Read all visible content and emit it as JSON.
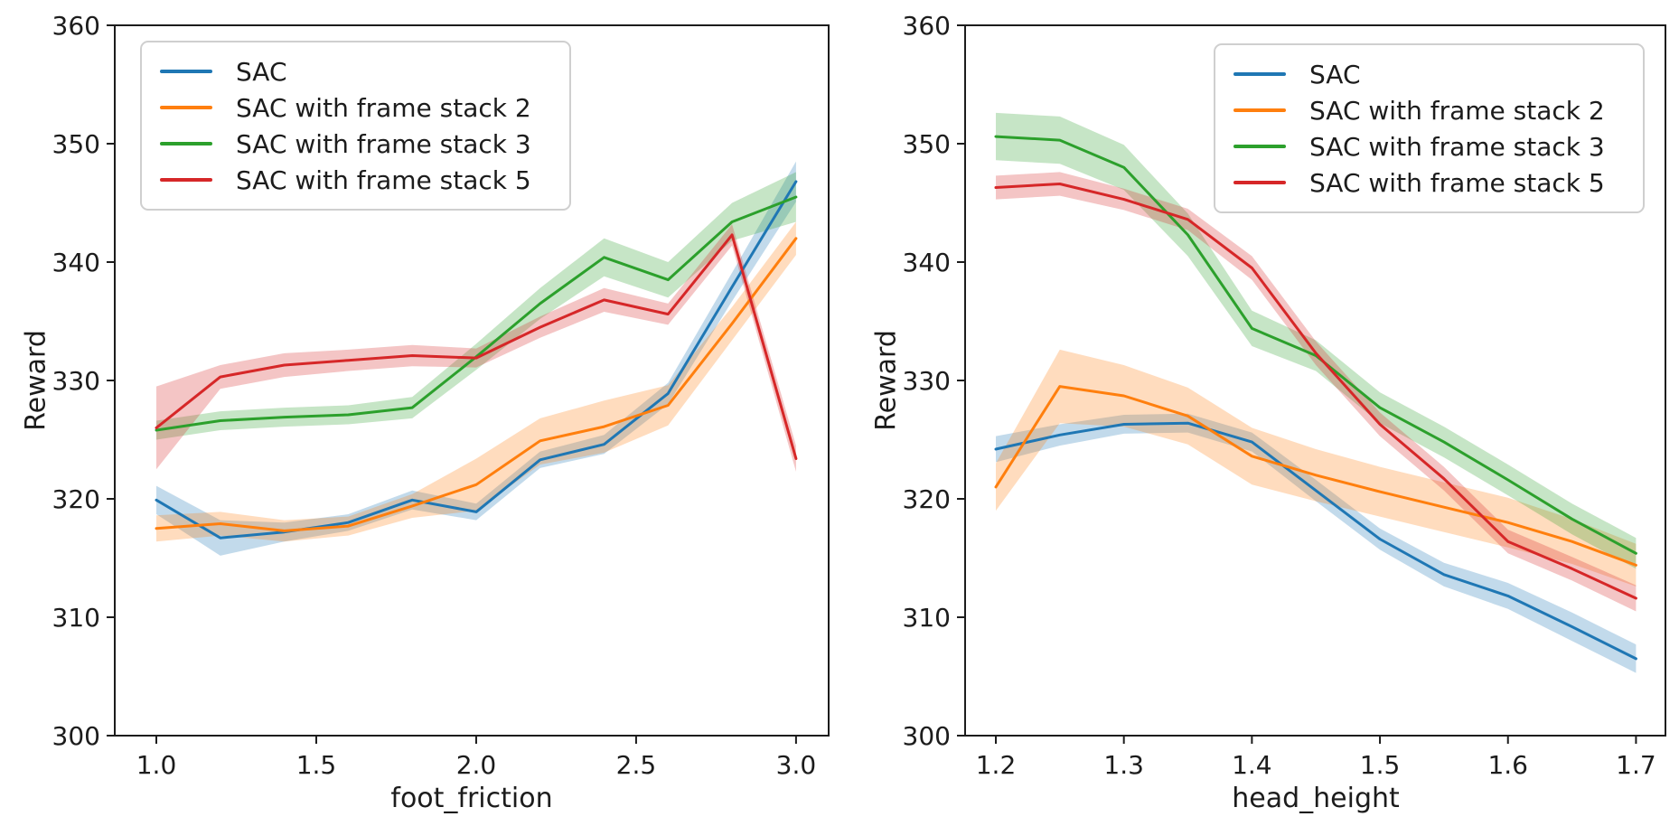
{
  "figure": {
    "background": "#ffffff"
  },
  "chart_data": [
    {
      "type": "line",
      "title": "",
      "xlabel": "foot_friction",
      "ylabel": "Reward",
      "xlim": [
        0.87,
        3.102
      ],
      "ylim": [
        300,
        360
      ],
      "grid": false,
      "legend_loc": "upper left",
      "xtick_values": [
        1.0,
        1.5,
        2.0,
        2.5,
        3.0
      ],
      "xtick_labels": [
        "1.0",
        "1.5",
        "2.0",
        "2.5",
        "3.0"
      ],
      "ytick_values": [
        300,
        310,
        320,
        330,
        340,
        350,
        360
      ],
      "ytick_labels": [
        "300",
        "310",
        "320",
        "330",
        "340",
        "350",
        "360"
      ],
      "x": [
        1.0,
        1.2,
        1.4,
        1.6,
        1.8,
        2.0,
        2.2,
        2.4,
        2.6,
        2.8,
        3.0
      ],
      "series": [
        {
          "name": "SAC",
          "color": "#1f77b4",
          "mean": [
            319.9,
            316.7,
            317.2,
            318.0,
            319.9,
            318.9,
            323.3,
            324.6,
            328.9,
            337.9,
            346.8
          ],
          "lo": [
            318.7,
            315.2,
            316.4,
            317.3,
            319.1,
            318.2,
            322.6,
            323.8,
            328.0,
            336.7,
            345.1
          ],
          "hi": [
            321.1,
            318.2,
            318.0,
            318.7,
            320.7,
            319.6,
            324.0,
            325.4,
            329.8,
            339.1,
            348.5
          ]
        },
        {
          "name": "SAC with frame stack 2",
          "color": "#ff7f0e",
          "mean": [
            317.5,
            317.9,
            317.3,
            317.7,
            319.4,
            321.2,
            324.9,
            326.1,
            327.9,
            334.8,
            342.0
          ],
          "lo": [
            316.4,
            316.9,
            316.4,
            316.9,
            318.4,
            319.0,
            322.9,
            323.9,
            326.2,
            333.4,
            340.6
          ],
          "hi": [
            318.6,
            318.9,
            318.2,
            318.5,
            320.4,
            323.4,
            326.8,
            328.3,
            329.6,
            336.2,
            343.4
          ]
        },
        {
          "name": "SAC with frame stack 3",
          "color": "#2ca02c",
          "mean": [
            325.8,
            326.6,
            326.9,
            327.1,
            327.7,
            332.0,
            336.5,
            340.4,
            338.5,
            343.4,
            345.5
          ],
          "lo": [
            325.0,
            325.8,
            326.1,
            326.3,
            326.8,
            330.9,
            335.2,
            338.8,
            337.0,
            341.8,
            343.4
          ],
          "hi": [
            326.6,
            327.4,
            327.7,
            327.9,
            328.6,
            333.1,
            337.8,
            342.0,
            340.0,
            345.0,
            347.6
          ]
        },
        {
          "name": "SAC with frame stack 5",
          "color": "#d62728",
          "mean": [
            326.0,
            330.3,
            331.3,
            331.7,
            332.1,
            331.9,
            334.5,
            336.8,
            335.6,
            342.3,
            323.4
          ],
          "lo": [
            322.5,
            329.3,
            330.3,
            330.8,
            331.2,
            331.1,
            333.6,
            335.8,
            334.7,
            341.4,
            322.3
          ],
          "hi": [
            329.5,
            331.3,
            332.3,
            332.6,
            333.0,
            332.7,
            335.4,
            337.8,
            336.5,
            343.2,
            324.5
          ]
        }
      ]
    },
    {
      "type": "line",
      "title": "",
      "xlabel": "head_height",
      "ylabel": "Reward",
      "xlim": [
        1.176,
        1.723
      ],
      "ylim": [
        300,
        360
      ],
      "grid": false,
      "legend_loc": "upper right",
      "xtick_values": [
        1.2,
        1.3,
        1.4,
        1.5,
        1.6,
        1.7
      ],
      "xtick_labels": [
        "1.2",
        "1.3",
        "1.4",
        "1.5",
        "1.6",
        "1.7"
      ],
      "ytick_values": [
        300,
        310,
        320,
        330,
        340,
        350,
        360
      ],
      "ytick_labels": [
        "300",
        "310",
        "320",
        "330",
        "340",
        "350",
        "360"
      ],
      "x": [
        1.2,
        1.25,
        1.3,
        1.35,
        1.4,
        1.45,
        1.5,
        1.55,
        1.6,
        1.65,
        1.7
      ],
      "series": [
        {
          "name": "SAC",
          "color": "#1f77b4",
          "mean": [
            324.2,
            325.4,
            326.3,
            326.4,
            324.8,
            320.7,
            316.6,
            313.6,
            311.8,
            309.2,
            306.5
          ],
          "lo": [
            323.1,
            324.5,
            325.5,
            325.6,
            324.0,
            319.8,
            315.7,
            312.6,
            310.7,
            308.0,
            305.3
          ],
          "hi": [
            325.3,
            326.3,
            327.1,
            327.2,
            325.6,
            321.6,
            317.5,
            314.6,
            312.9,
            310.4,
            307.7
          ]
        },
        {
          "name": "SAC with frame stack 2",
          "color": "#ff7f0e",
          "mean": [
            321.0,
            329.5,
            328.7,
            327.0,
            323.6,
            322.0,
            320.6,
            319.3,
            318.0,
            316.4,
            314.4
          ],
          "lo": [
            319.0,
            326.4,
            326.1,
            324.6,
            321.2,
            319.8,
            318.5,
            317.2,
            315.9,
            314.5,
            312.6
          ],
          "hi": [
            323.0,
            332.6,
            331.3,
            329.4,
            326.0,
            324.2,
            322.7,
            321.4,
            320.1,
            318.3,
            316.2
          ]
        },
        {
          "name": "SAC with frame stack 3",
          "color": "#2ca02c",
          "mean": [
            350.6,
            350.3,
            348.0,
            342.3,
            334.4,
            332.1,
            327.7,
            324.8,
            321.6,
            318.3,
            315.4
          ],
          "lo": [
            348.6,
            348.3,
            346.1,
            340.5,
            332.9,
            330.8,
            326.4,
            323.5,
            320.3,
            317.0,
            314.1
          ],
          "hi": [
            352.6,
            352.3,
            349.9,
            344.1,
            335.9,
            333.4,
            329.0,
            326.1,
            322.9,
            319.6,
            316.7
          ]
        },
        {
          "name": "SAC with frame stack 5",
          "color": "#d62728",
          "mean": [
            346.3,
            346.6,
            345.3,
            343.6,
            339.5,
            332.3,
            326.3,
            321.7,
            316.4,
            314.1,
            311.6
          ],
          "lo": [
            345.3,
            345.6,
            344.4,
            342.7,
            338.5,
            331.3,
            325.3,
            320.7,
            315.4,
            313.1,
            310.5
          ],
          "hi": [
            347.3,
            347.6,
            346.2,
            344.5,
            340.5,
            333.3,
            327.3,
            322.7,
            317.4,
            315.1,
            312.7
          ]
        }
      ]
    }
  ]
}
